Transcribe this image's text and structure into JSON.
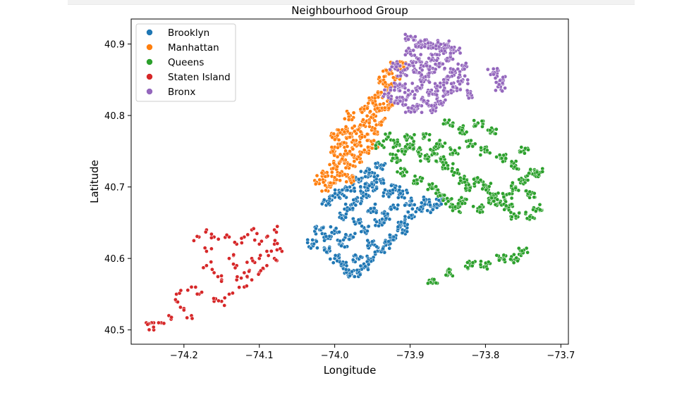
{
  "chart_data": {
    "type": "scatter",
    "title": "Neighbourhood Group",
    "xlabel": "Longitude",
    "ylabel": "Latitude",
    "xlim": [
      -74.27,
      -73.69
    ],
    "ylim": [
      40.48,
      40.935
    ],
    "xticks": [
      -74.2,
      -74.1,
      -74.0,
      -73.9,
      -73.8,
      -73.7
    ],
    "xtick_labels": [
      "−74.2",
      "−74.1",
      "−74.0",
      "−73.9",
      "−73.8",
      "−73.7"
    ],
    "yticks": [
      40.5,
      40.6,
      40.7,
      40.8,
      40.9
    ],
    "ytick_labels": [
      "40.5",
      "40.6",
      "40.7",
      "40.8",
      "40.9"
    ],
    "grid": false,
    "legend_position": "top-left",
    "series": [
      {
        "name": "Brooklyn",
        "color": "#1f77b4",
        "approx_centroid": [
          -73.95,
          40.68
        ],
        "points": [
          [
            -74.03,
            40.62
          ],
          [
            -74.02,
            40.64
          ],
          [
            -74.01,
            40.63
          ],
          [
            -74.0,
            40.64
          ],
          [
            -73.99,
            40.66
          ],
          [
            -73.98,
            40.67
          ],
          [
            -73.97,
            40.68
          ],
          [
            -73.96,
            40.69
          ],
          [
            -73.95,
            40.7
          ],
          [
            -73.94,
            40.71
          ],
          [
            -73.95,
            40.72
          ],
          [
            -73.94,
            40.73
          ],
          [
            -73.96,
            40.72
          ],
          [
            -73.98,
            40.7
          ],
          [
            -74.0,
            40.69
          ],
          [
            -74.01,
            40.68
          ],
          [
            -73.99,
            40.69
          ],
          [
            -73.93,
            40.69
          ],
          [
            -73.92,
            40.7
          ],
          [
            -73.91,
            40.69
          ],
          [
            -73.9,
            40.68
          ],
          [
            -73.89,
            40.67
          ],
          [
            -73.88,
            40.68
          ],
          [
            -73.87,
            40.67
          ],
          [
            -73.86,
            40.68
          ],
          [
            -73.9,
            40.66
          ],
          [
            -73.91,
            40.64
          ],
          [
            -73.92,
            40.63
          ],
          [
            -73.93,
            40.62
          ],
          [
            -73.94,
            40.61
          ],
          [
            -73.95,
            40.6
          ],
          [
            -73.96,
            40.59
          ],
          [
            -73.97,
            40.58
          ],
          [
            -73.98,
            40.58
          ],
          [
            -73.99,
            40.59
          ],
          [
            -74.0,
            40.6
          ],
          [
            -73.97,
            40.6
          ],
          [
            -73.95,
            40.62
          ],
          [
            -73.96,
            40.64
          ],
          [
            -73.94,
            40.65
          ],
          [
            -73.93,
            40.66
          ],
          [
            -73.97,
            40.65
          ],
          [
            -73.98,
            40.63
          ],
          [
            -74.01,
            40.61
          ],
          [
            -73.99,
            40.62
          ],
          [
            -73.92,
            40.67
          ],
          [
            -73.91,
            40.65
          ],
          [
            -73.95,
            40.67
          ],
          [
            -73.96,
            40.7
          ],
          [
            -73.97,
            40.71
          ]
        ]
      },
      {
        "name": "Manhattan",
        "color": "#ff7f0e",
        "approx_centroid": [
          -73.97,
          40.76
        ],
        "points": [
          [
            -74.02,
            40.71
          ],
          [
            -74.01,
            40.72
          ],
          [
            -74.0,
            40.73
          ],
          [
            -73.99,
            40.72
          ],
          [
            -73.98,
            40.73
          ],
          [
            -73.99,
            40.74
          ],
          [
            -73.98,
            40.75
          ],
          [
            -73.97,
            40.76
          ],
          [
            -73.96,
            40.77
          ],
          [
            -73.95,
            40.78
          ],
          [
            -73.94,
            40.79
          ],
          [
            -73.95,
            40.8
          ],
          [
            -73.94,
            40.81
          ],
          [
            -73.93,
            40.82
          ],
          [
            -73.94,
            40.83
          ],
          [
            -73.93,
            40.84
          ],
          [
            -73.92,
            40.85
          ],
          [
            -73.93,
            40.86
          ],
          [
            -73.92,
            40.87
          ],
          [
            -73.91,
            40.87
          ],
          [
            -74.0,
            40.75
          ],
          [
            -73.99,
            40.76
          ],
          [
            -73.98,
            40.77
          ],
          [
            -73.97,
            40.78
          ],
          [
            -73.96,
            40.79
          ],
          [
            -74.01,
            40.7
          ],
          [
            -74.0,
            40.71
          ],
          [
            -73.98,
            40.71
          ],
          [
            -73.97,
            40.74
          ],
          [
            -73.96,
            40.75
          ],
          [
            -73.95,
            40.76
          ],
          [
            -73.96,
            40.81
          ],
          [
            -73.95,
            40.82
          ],
          [
            -73.94,
            40.85
          ],
          [
            -73.93,
            40.81
          ],
          [
            -74.0,
            40.77
          ],
          [
            -73.99,
            40.78
          ],
          [
            -73.98,
            40.8
          ]
        ]
      },
      {
        "name": "Queens",
        "color": "#2ca02c",
        "approx_centroid": [
          -73.82,
          40.72
        ],
        "points": [
          [
            -73.94,
            40.76
          ],
          [
            -73.93,
            40.77
          ],
          [
            -73.92,
            40.76
          ],
          [
            -73.91,
            40.75
          ],
          [
            -73.9,
            40.76
          ],
          [
            -73.89,
            40.75
          ],
          [
            -73.88,
            40.74
          ],
          [
            -73.87,
            40.75
          ],
          [
            -73.86,
            40.74
          ],
          [
            -73.85,
            40.73
          ],
          [
            -73.84,
            40.72
          ],
          [
            -73.83,
            40.71
          ],
          [
            -73.82,
            40.7
          ],
          [
            -73.81,
            40.71
          ],
          [
            -73.8,
            40.7
          ],
          [
            -73.79,
            40.69
          ],
          [
            -73.78,
            40.68
          ],
          [
            -73.77,
            40.69
          ],
          [
            -73.76,
            40.7
          ],
          [
            -73.75,
            40.71
          ],
          [
            -73.74,
            40.72
          ],
          [
            -73.76,
            40.73
          ],
          [
            -73.78,
            40.74
          ],
          [
            -73.8,
            40.75
          ],
          [
            -73.82,
            40.76
          ],
          [
            -73.84,
            40.75
          ],
          [
            -73.86,
            40.76
          ],
          [
            -73.88,
            40.77
          ],
          [
            -73.9,
            40.77
          ],
          [
            -73.92,
            40.74
          ],
          [
            -73.91,
            40.72
          ],
          [
            -73.89,
            40.71
          ],
          [
            -73.87,
            40.7
          ],
          [
            -73.86,
            40.69
          ],
          [
            -73.85,
            40.68
          ],
          [
            -73.84,
            40.67
          ],
          [
            -73.83,
            40.68
          ],
          [
            -73.81,
            40.67
          ],
          [
            -73.79,
            40.68
          ],
          [
            -73.77,
            40.67
          ],
          [
            -73.76,
            40.66
          ],
          [
            -73.74,
            40.66
          ],
          [
            -73.73,
            40.67
          ],
          [
            -73.74,
            40.69
          ],
          [
            -73.75,
            40.75
          ],
          [
            -73.73,
            40.72
          ],
          [
            -73.82,
            40.59
          ],
          [
            -73.8,
            40.59
          ],
          [
            -73.78,
            40.6
          ],
          [
            -73.76,
            40.6
          ],
          [
            -73.75,
            40.61
          ],
          [
            -73.85,
            40.58
          ],
          [
            -73.87,
            40.57
          ],
          [
            -73.85,
            40.79
          ],
          [
            -73.83,
            40.78
          ],
          [
            -73.81,
            40.79
          ],
          [
            -73.79,
            40.78
          ]
        ]
      },
      {
        "name": "Staten Island",
        "color": "#d62728",
        "approx_centroid": [
          -74.12,
          40.6
        ],
        "points": [
          [
            -74.08,
            40.64
          ],
          [
            -74.09,
            40.63
          ],
          [
            -74.08,
            40.62
          ],
          [
            -74.07,
            40.61
          ],
          [
            -74.08,
            40.6
          ],
          [
            -74.09,
            40.61
          ],
          [
            -74.1,
            40.62
          ],
          [
            -74.1,
            40.6
          ],
          [
            -74.09,
            40.59
          ],
          [
            -74.1,
            40.58
          ],
          [
            -74.11,
            40.57
          ],
          [
            -74.12,
            40.56
          ],
          [
            -74.13,
            40.57
          ],
          [
            -74.14,
            40.55
          ],
          [
            -74.15,
            40.54
          ],
          [
            -74.16,
            40.54
          ],
          [
            -74.15,
            40.57
          ],
          [
            -74.14,
            40.6
          ],
          [
            -74.13,
            40.62
          ],
          [
            -74.12,
            40.63
          ],
          [
            -74.11,
            40.64
          ],
          [
            -74.14,
            40.63
          ],
          [
            -74.16,
            40.63
          ],
          [
            -74.17,
            40.64
          ],
          [
            -74.18,
            40.63
          ],
          [
            -74.17,
            40.61
          ],
          [
            -74.17,
            40.59
          ],
          [
            -74.16,
            40.58
          ],
          [
            -74.18,
            40.55
          ],
          [
            -74.19,
            40.56
          ],
          [
            -74.21,
            40.55
          ],
          [
            -74.2,
            40.53
          ],
          [
            -74.22,
            40.52
          ],
          [
            -74.24,
            40.51
          ],
          [
            -74.25,
            40.51
          ],
          [
            -74.24,
            40.5
          ],
          [
            -74.23,
            40.51
          ],
          [
            -74.21,
            40.54
          ],
          [
            -74.19,
            40.52
          ],
          [
            -74.12,
            40.58
          ],
          [
            -74.11,
            40.6
          ],
          [
            -74.13,
            40.59
          ]
        ]
      },
      {
        "name": "Bronx",
        "color": "#9467bd",
        "approx_centroid": [
          -73.88,
          40.85
        ],
        "points": [
          [
            -73.93,
            40.83
          ],
          [
            -73.92,
            40.84
          ],
          [
            -73.91,
            40.82
          ],
          [
            -73.9,
            40.83
          ],
          [
            -73.89,
            40.84
          ],
          [
            -73.88,
            40.85
          ],
          [
            -73.87,
            40.86
          ],
          [
            -73.86,
            40.87
          ],
          [
            -73.85,
            40.88
          ],
          [
            -73.84,
            40.89
          ],
          [
            -73.85,
            40.9
          ],
          [
            -73.86,
            40.89
          ],
          [
            -73.87,
            40.88
          ],
          [
            -73.88,
            40.87
          ],
          [
            -73.89,
            40.88
          ],
          [
            -73.9,
            40.87
          ],
          [
            -73.91,
            40.86
          ],
          [
            -73.92,
            40.87
          ],
          [
            -73.9,
            40.89
          ],
          [
            -73.9,
            40.91
          ],
          [
            -73.89,
            40.9
          ],
          [
            -73.88,
            40.9
          ],
          [
            -73.87,
            40.9
          ],
          [
            -73.86,
            40.9
          ],
          [
            -73.84,
            40.86
          ],
          [
            -73.83,
            40.85
          ],
          [
            -73.84,
            40.84
          ],
          [
            -73.85,
            40.83
          ],
          [
            -73.86,
            40.82
          ],
          [
            -73.87,
            40.81
          ],
          [
            -73.88,
            40.82
          ],
          [
            -73.89,
            40.81
          ],
          [
            -73.9,
            40.81
          ],
          [
            -73.91,
            40.84
          ],
          [
            -73.92,
            40.82
          ],
          [
            -73.83,
            40.87
          ],
          [
            -73.85,
            40.85
          ],
          [
            -73.87,
            40.83
          ],
          [
            -73.86,
            40.84
          ],
          [
            -73.89,
            40.86
          ],
          [
            -73.82,
            40.83
          ],
          [
            -73.79,
            40.86
          ],
          [
            -73.78,
            40.85
          ],
          [
            -73.78,
            40.84
          ]
        ]
      }
    ]
  }
}
